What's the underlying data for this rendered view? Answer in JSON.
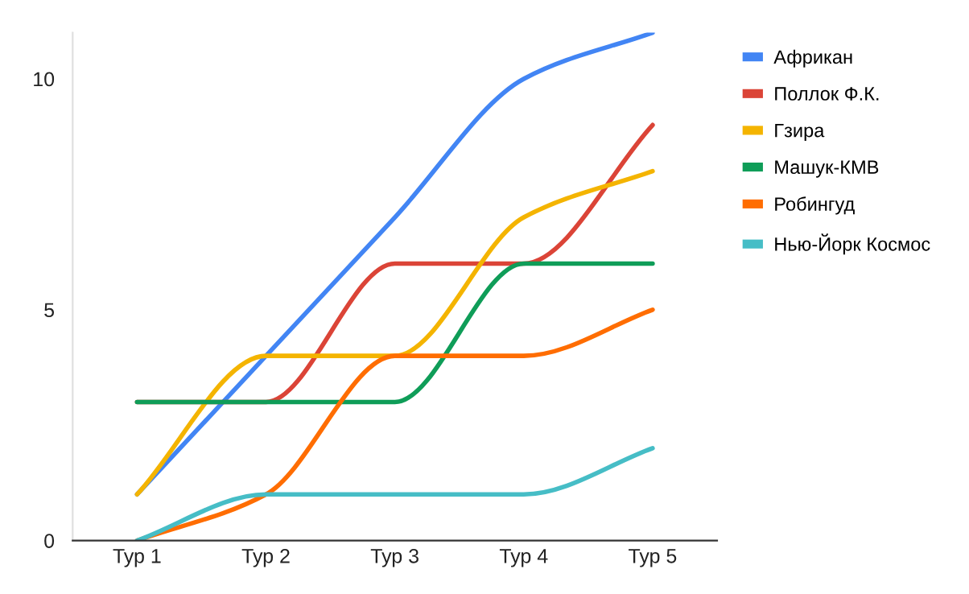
{
  "chart_data": {
    "type": "line",
    "categories": [
      "Тур 1",
      "Тур 2",
      "Тур 3",
      "Тур 4",
      "Тур 5"
    ],
    "series": [
      {
        "name": "Африкан",
        "color": "#4285f4",
        "values": [
          1,
          4,
          7,
          10,
          11
        ]
      },
      {
        "name": "Поллок Ф.К.",
        "color": "#db4437",
        "values": [
          3,
          3,
          6,
          6,
          9
        ]
      },
      {
        "name": "Гзира",
        "color": "#f4b400",
        "values": [
          1,
          4,
          4,
          7,
          8
        ]
      },
      {
        "name": "Машук-КМВ",
        "color": "#0f9d58",
        "values": [
          3,
          3,
          3,
          6,
          6
        ]
      },
      {
        "name": "Робингуд",
        "color": "#ff6d01",
        "values": [
          0,
          1,
          4,
          4,
          5
        ]
      },
      {
        "name": "Нью-Йорк Космос",
        "color": "#46bdc6",
        "values": [
          0,
          1,
          1,
          1,
          2
        ]
      }
    ],
    "ylim": [
      0,
      11
    ],
    "yticks": [
      0,
      5,
      10
    ],
    "grid": false,
    "legend": "right",
    "marker": "none",
    "line_style": "solid"
  }
}
